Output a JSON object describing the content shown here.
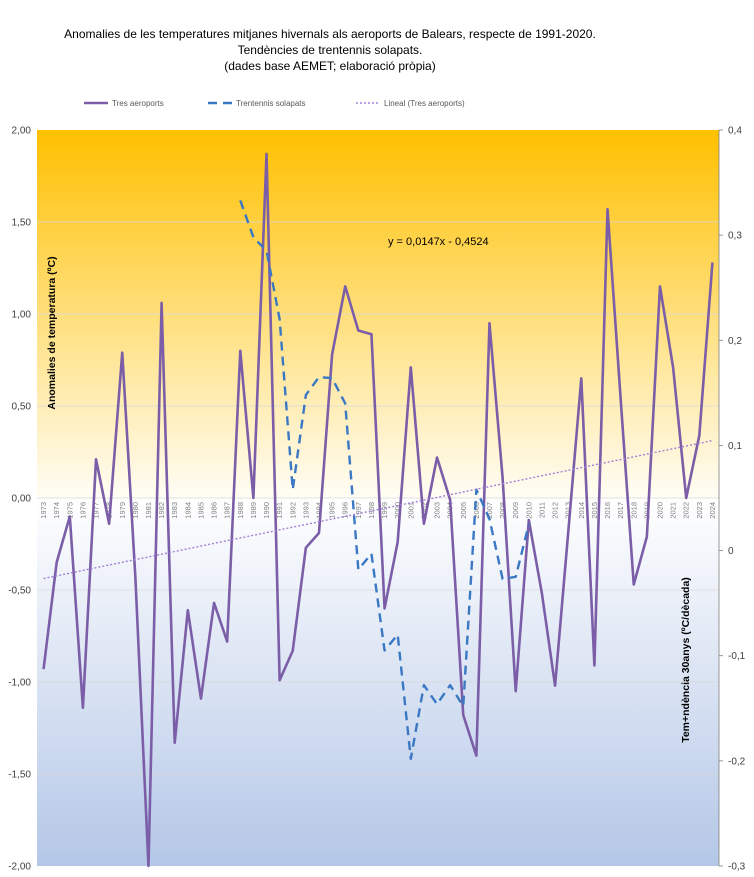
{
  "title": {
    "line1": "Anomalies de les temperatures mitjanes hivernals als aeroports de Balears, respecte de 1991-2020.",
    "line2": "Tendències de trentennis solapats.",
    "line3": "(dades base AEMET; elaboració pròpia)"
  },
  "colors": {
    "main": "#7b5ea7",
    "trend30": "#3a78c4",
    "linear": "#a47fd6"
  },
  "chart_data": {
    "type": "line",
    "title": "Anomalies de les temperatures mitjanes hivernals als aeroports de Balears, respecte de 1991-2020. Tendències de trentennis solapats. (dades base AEMET; elaboració pròpia)",
    "ylabel": "Anomalies de temperatura (ºC)",
    "y2label": "Tem+ndència 30anys (ºC/dècada)",
    "ylim": [
      -2.0,
      2.0
    ],
    "y2lim": [
      -0.3,
      0.4
    ],
    "yticks": [
      "-2,00",
      "-1,50",
      "-1,00",
      "-0,50",
      "0,00",
      "0,50",
      "1,00",
      "1,50",
      "2,00"
    ],
    "y2ticks": [
      "-0,3",
      "-0,2",
      "-0,1",
      "0",
      "0,1",
      "0,2",
      "0,3",
      "0,4"
    ],
    "legend_position": "top",
    "annotation": "y = 0,0147x - 0,4524",
    "x": [
      "1973",
      "1974",
      "1975",
      "1976",
      "1977",
      "1978",
      "1979",
      "1980",
      "1981",
      "1982",
      "1983",
      "1984",
      "1985",
      "1986",
      "1987",
      "1988",
      "1989",
      "1990",
      "1991",
      "1992",
      "1993",
      "1994",
      "1995",
      "1996",
      "1997",
      "1998",
      "1999",
      "2000",
      "2001",
      "2002",
      "2003",
      "2004",
      "2005",
      "2006",
      "2007",
      "2008",
      "2009",
      "2010",
      "2011",
      "2012",
      "2013",
      "2014",
      "2015",
      "2016",
      "2017",
      "2018",
      "2019",
      "2020",
      "2021",
      "2022",
      "2023",
      "2024"
    ],
    "series": [
      {
        "name": "Tres aeroports",
        "axis": "left",
        "values": [
          -0.93,
          -0.35,
          -0.1,
          -1.14,
          0.21,
          -0.14,
          0.79,
          -0.43,
          -2.0,
          1.06,
          -1.33,
          -0.61,
          -1.09,
          -0.57,
          -0.78,
          0.8,
          0.0,
          1.87,
          -0.99,
          -0.83,
          -0.27,
          -0.19,
          0.78,
          1.15,
          0.91,
          0.89,
          -0.6,
          -0.24,
          0.71,
          -0.14,
          0.22,
          -0.01,
          -1.18,
          -1.4,
          0.95,
          0.11,
          -1.05,
          -0.12,
          -0.52,
          -1.02,
          -0.19,
          0.65,
          -0.91,
          1.57,
          0.54,
          -0.47,
          -0.21,
          1.15,
          0.71,
          0.0,
          0.34,
          1.28
        ]
      },
      {
        "name": "Trentennis solapats",
        "axis": "right",
        "values": [
          null,
          null,
          null,
          null,
          null,
          null,
          null,
          null,
          null,
          null,
          null,
          null,
          null,
          null,
          null,
          0.333,
          0.298,
          0.285,
          0.22,
          0.058,
          0.148,
          0.165,
          0.164,
          0.14,
          -0.018,
          -0.003,
          -0.095,
          -0.08,
          -0.198,
          -0.128,
          -0.146,
          -0.128,
          -0.148,
          0.058,
          0.03,
          -0.027,
          -0.025,
          0.025,
          null,
          null,
          null,
          null,
          null,
          null,
          null,
          null,
          null,
          null,
          null,
          null,
          null,
          null
        ]
      },
      {
        "name": "Lineal  (Tres aeroports)",
        "axis": "left",
        "values": [
          -0.4377,
          -0.423,
          -0.4083,
          -0.3936,
          -0.3789,
          -0.3642,
          -0.3495,
          -0.3348,
          -0.3201,
          -0.3054,
          -0.2907,
          -0.276,
          -0.2613,
          -0.2466,
          -0.2319,
          -0.2172,
          -0.2025,
          -0.1878,
          -0.1731,
          -0.1584,
          -0.1437,
          -0.129,
          -0.1143,
          -0.0996,
          -0.0849,
          -0.0702,
          -0.0555,
          -0.0408,
          -0.0261,
          -0.0114,
          0.0033,
          0.018,
          0.0327,
          0.0474,
          0.0621,
          0.0768,
          0.0915,
          0.1062,
          0.1209,
          0.1356,
          0.1503,
          0.165,
          0.1797,
          0.1944,
          0.2091,
          0.2238,
          0.2385,
          0.2532,
          0.2679,
          0.2826,
          0.2973,
          0.312
        ]
      }
    ]
  }
}
